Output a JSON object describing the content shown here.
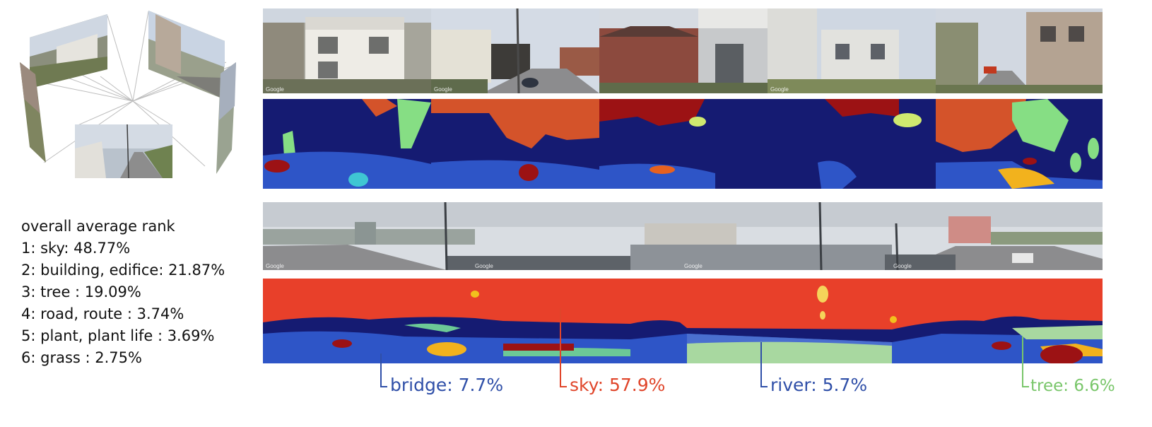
{
  "ranking": {
    "title": "overall average rank",
    "items": [
      "1: sky: 48.77%",
      "2: building, edifice: 21.87%",
      "3: tree : 19.09%",
      "4: road, route : 3.74%",
      "5: plant, plant life : 3.69%",
      "6: grass : 2.75%"
    ]
  },
  "watermark": "Google",
  "callouts": [
    {
      "label": "bridge: 7.7%",
      "color": "#2f4fa8"
    },
    {
      "label": "sky: 57.9%",
      "color": "#e0452a"
    },
    {
      "label": "river: 5.7%",
      "color": "#2f4fa8"
    },
    {
      "label": "tree: 6.6%",
      "color": "#79c66a"
    }
  ],
  "colors": {
    "sky_segment": "#e8402a",
    "building_segment": "#151b72",
    "tree_segment": "#86de84",
    "road_segment": "#2e55c7",
    "house_segment": "#d4532a",
    "highlight_segment": "#9c1214",
    "gold_segment": "#f2b21d",
    "photo_sky": "#d9dde2"
  },
  "icons": [
    "cube-panorama-diagram",
    "street-photo",
    "segmentation-map"
  ]
}
